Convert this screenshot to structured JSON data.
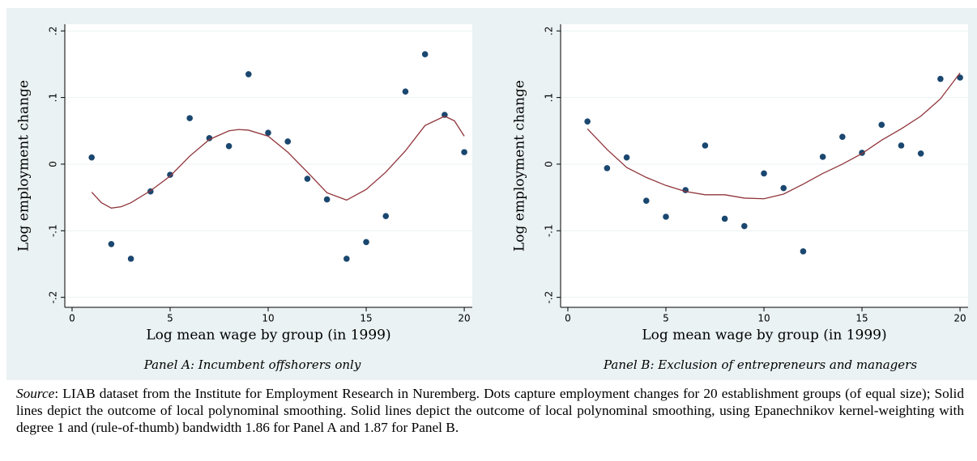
{
  "chart_data": [
    {
      "type": "scatter",
      "caption": "Panel A: Incumbent offshorers only",
      "x_label": "Log mean wage by group (in 1999)",
      "y_label": "Log employment change",
      "xlim": [
        -0.37,
        20.41
      ],
      "ylim": [
        -0.215,
        0.21
      ],
      "xticks": [
        0,
        5,
        10,
        15,
        20
      ],
      "yticks": [
        {
          "value": -0.2,
          "label": "-.2"
        },
        {
          "value": -0.1,
          "label": "-.1"
        },
        0,
        {
          "value": 0.1,
          "label": ".1"
        },
        {
          "value": 0.2,
          "label": ".2"
        }
      ],
      "grid": true,
      "series": [
        {
          "type": "scatter",
          "color": "#1a476f",
          "x": [
            1,
            2,
            3,
            4,
            5,
            6,
            7,
            8,
            9,
            10,
            11,
            12,
            13,
            14,
            15,
            16,
            17,
            18,
            19,
            20
          ],
          "values": [
            0.01,
            -0.12,
            -0.142,
            -0.041,
            -0.016,
            0.069,
            0.039,
            0.027,
            0.135,
            0.047,
            0.034,
            -0.022,
            -0.053,
            -0.142,
            -0.117,
            -0.078,
            0.109,
            0.165,
            0.074,
            0.018
          ]
        },
        {
          "type": "line",
          "color": "#90353b",
          "x": [
            1,
            1.5,
            2,
            2.5,
            3,
            4,
            5,
            6,
            7,
            8,
            8.5,
            9,
            10,
            11,
            12,
            13,
            14,
            15,
            16,
            17,
            18,
            19,
            19.5,
            20
          ],
          "values": [
            -0.042,
            -0.058,
            -0.066,
            -0.064,
            -0.058,
            -0.04,
            -0.018,
            0.012,
            0.037,
            0.05,
            0.052,
            0.051,
            0.042,
            0.018,
            -0.012,
            -0.043,
            -0.054,
            -0.038,
            -0.012,
            0.02,
            0.058,
            0.072,
            0.065,
            0.042
          ]
        }
      ]
    },
    {
      "type": "scatter",
      "caption": "Panel B: Exclusion of entrepreneurs and managers",
      "x_label": "Log mean wage by group (in 1999)",
      "y_label": "Log employment change",
      "xlim": [
        -0.37,
        20.41
      ],
      "ylim": [
        -0.215,
        0.21
      ],
      "xticks": [
        0,
        5,
        10,
        15,
        20
      ],
      "yticks": [
        {
          "value": -0.2,
          "label": "-.2"
        },
        {
          "value": -0.1,
          "label": "-.1"
        },
        0,
        {
          "value": 0.1,
          "label": ".1"
        },
        {
          "value": 0.2,
          "label": ".2"
        }
      ],
      "grid": true,
      "series": [
        {
          "type": "scatter",
          "color": "#1a476f",
          "x": [
            1,
            2,
            3,
            4,
            5,
            6,
            7,
            8,
            9,
            10,
            11,
            12,
            13,
            14,
            15,
            16,
            17,
            18,
            19,
            20
          ],
          "values": [
            0.064,
            -0.006,
            0.01,
            -0.055,
            -0.079,
            -0.039,
            0.028,
            -0.082,
            -0.093,
            -0.014,
            -0.036,
            -0.131,
            0.011,
            0.041,
            0.017,
            0.059,
            0.028,
            0.016,
            0.128,
            0.13
          ]
        },
        {
          "type": "line",
          "color": "#90353b",
          "x": [
            1,
            2,
            3,
            4,
            5,
            6,
            7,
            8,
            9,
            10,
            11,
            12,
            13,
            14,
            15,
            16,
            17,
            18,
            19,
            20
          ],
          "values": [
            0.053,
            0.022,
            -0.005,
            -0.02,
            -0.032,
            -0.041,
            -0.046,
            -0.046,
            -0.051,
            -0.052,
            -0.045,
            -0.03,
            -0.014,
            0.0,
            0.016,
            0.036,
            0.053,
            0.072,
            0.098,
            0.137
          ]
        }
      ]
    }
  ],
  "notes": {
    "source_label": "Source",
    "source_text": ": LIAB dataset from the Institute for Employment Research in Nuremberg. Dots capture employment changes for 20 establishment groups (of equal size); Solid lines depict the outcome of local polynominal smoothing. Solid lines depict the outcome of local polynominal smoothing, using Epanechnikov kernel-weighting with degree 1 and (rule-of-thumb) bandwidth 1.86 for Panel A and 1.87 for Panel B."
  }
}
